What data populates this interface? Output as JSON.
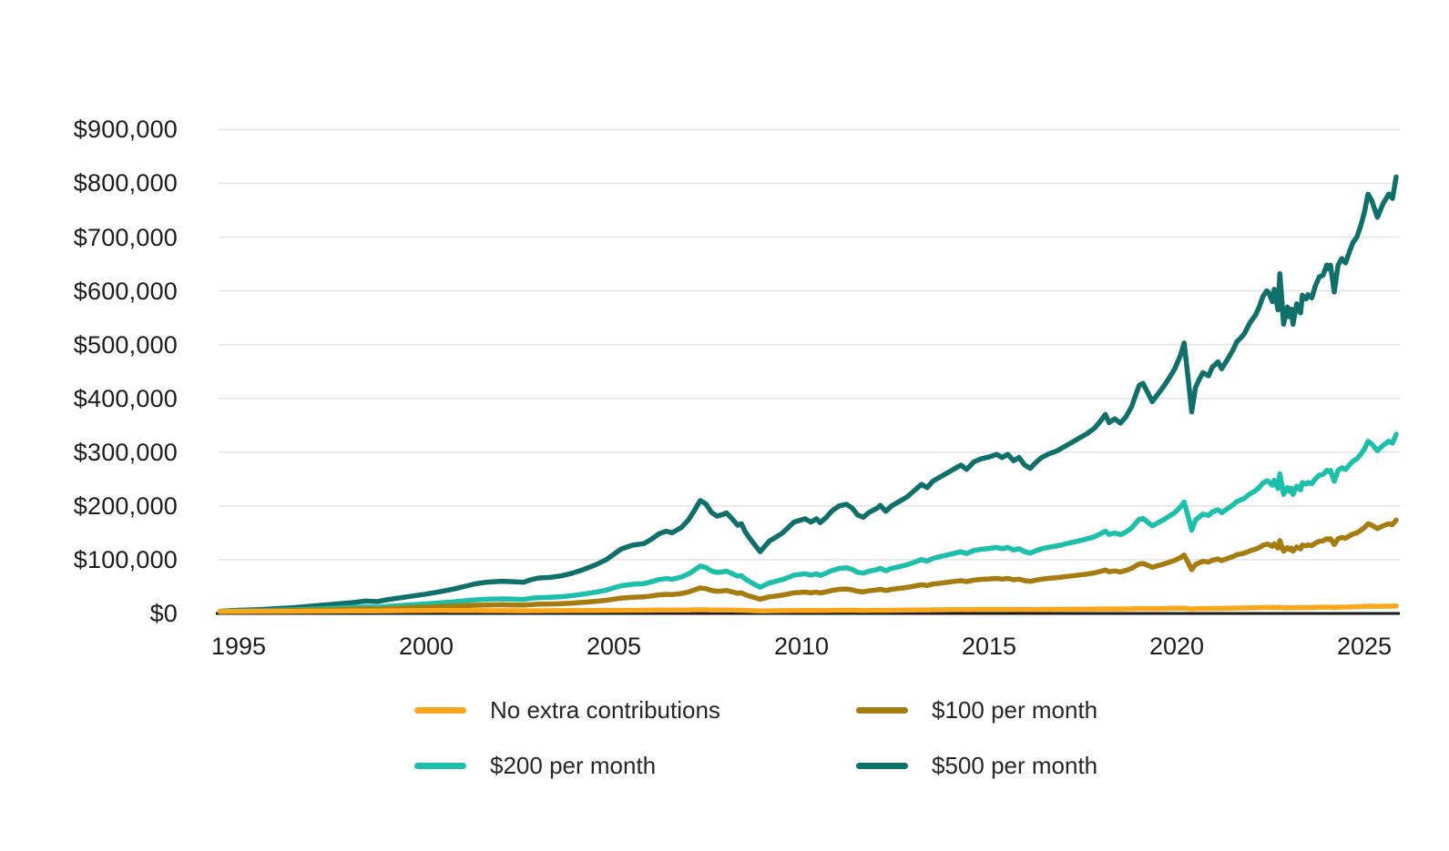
{
  "chart_data": {
    "type": "line",
    "unit_note": "values in thousands of USD read from axis gridlines",
    "grid": "horizontal",
    "legend_position": "bottom",
    "background_color": "#ffffff",
    "axis_color": "#1a1a1a",
    "grid_color": "#e5e5e5",
    "text_color": "#1c1c1c",
    "x_range": [
      1994.5,
      2026.0
    ],
    "y_range_thousands": [
      0,
      900
    ],
    "y_ticks": [
      {
        "value": 0,
        "label": "$0"
      },
      {
        "value": 100,
        "label": "$100,000"
      },
      {
        "value": 200,
        "label": "$200,000"
      },
      {
        "value": 300,
        "label": "$300,000"
      },
      {
        "value": 400,
        "label": "$400,000"
      },
      {
        "value": 500,
        "label": "$500,000"
      },
      {
        "value": 600,
        "label": "$600,000"
      },
      {
        "value": 700,
        "label": "$700,000"
      },
      {
        "value": 800,
        "label": "$800,000"
      },
      {
        "value": 900,
        "label": "$900,000"
      }
    ],
    "x_ticks": [
      {
        "year": 1995,
        "label": "1995"
      },
      {
        "year": 2000,
        "label": "2000"
      },
      {
        "year": 2005,
        "label": "2005"
      },
      {
        "year": 2010,
        "label": "2010"
      },
      {
        "year": 2015,
        "label": "2015"
      },
      {
        "year": 2020,
        "label": "2020"
      },
      {
        "year": 2025,
        "label": "2025"
      }
    ],
    "x": [
      1994.5,
      1995,
      1995.5,
      1996,
      1996.5,
      1997,
      1997.5,
      1998,
      1998.4,
      1998.7,
      1999,
      1999.5,
      2000,
      2000.4,
      2000.7,
      2001,
      2001.3,
      2001.6,
      2002,
      2002.3,
      2002.6,
      2002.8,
      2003,
      2003.3,
      2003.6,
      2003.9,
      2004.2,
      2004.5,
      2004.8,
      2005,
      2005.2,
      2005.5,
      2005.8,
      2006,
      2006.2,
      2006.4,
      2006.55,
      2006.8,
      2007,
      2007.15,
      2007.3,
      2007.45,
      2007.6,
      2007.75,
      2007.9,
      2008,
      2008.15,
      2008.3,
      2008.4,
      2008.5,
      2008.6,
      2008.75,
      2008.9,
      2009,
      2009.15,
      2009.3,
      2009.5,
      2009.65,
      2009.8,
      2009.95,
      2010.1,
      2010.25,
      2010.4,
      2010.5,
      2010.65,
      2010.8,
      2011,
      2011.2,
      2011.35,
      2011.5,
      2011.65,
      2011.8,
      2012,
      2012.1,
      2012.25,
      2012.4,
      2012.6,
      2012.8,
      2013,
      2013.2,
      2013.35,
      2013.5,
      2013.7,
      2013.9,
      2014.1,
      2014.25,
      2014.4,
      2014.6,
      2014.8,
      2015,
      2015.2,
      2015.35,
      2015.5,
      2015.65,
      2015.8,
      2015.95,
      2016.1,
      2016.25,
      2016.4,
      2016.6,
      2016.8,
      2017,
      2017.2,
      2017.4,
      2017.6,
      2017.8,
      2017.95,
      2018.1,
      2018.2,
      2018.35,
      2018.5,
      2018.65,
      2018.8,
      2018.9,
      2019,
      2019.1,
      2019.25,
      2019.35,
      2019.5,
      2019.65,
      2019.8,
      2019.95,
      2020.1,
      2020.2,
      2020.3,
      2020.4,
      2020.5,
      2020.6,
      2020.7,
      2020.85,
      2020.95,
      2021.1,
      2021.2,
      2021.35,
      2021.5,
      2021.6,
      2021.7,
      2021.8,
      2021.95,
      2022.1,
      2022.2,
      2022.3,
      2022.4,
      2022.45,
      2022.55,
      2022.6,
      2022.7,
      2022.75,
      2022.85,
      2022.95,
      2023,
      2023.05,
      2023.1,
      2023.2,
      2023.3,
      2023.35,
      2023.45,
      2023.5,
      2023.6,
      2023.7,
      2023.8,
      2023.9,
      2024,
      2024.05,
      2024.1,
      2024.2,
      2024.3,
      2024.4,
      2024.5,
      2024.6,
      2024.7,
      2024.8,
      2024.9,
      2025,
      2025.1,
      2025.2,
      2025.35,
      2025.5,
      2025.65,
      2025.75,
      2025.85
    ],
    "series": [
      {
        "name": "No extra contributions",
        "slug": "no-extra-contributions",
        "color": "#FBA71B",
        "values": [
          3.5,
          3.6,
          3.7,
          3.9,
          4,
          4.2,
          4.4,
          4.6,
          4.8,
          4.7,
          4.9,
          5.2,
          5.5,
          5.7,
          5.6,
          5.5,
          5.4,
          5.3,
          5.2,
          5,
          4.9,
          5,
          5.1,
          5.2,
          5.3,
          5.4,
          5.5,
          5.6,
          5.7,
          5.8,
          5.8,
          5.9,
          6,
          6.1,
          6.2,
          6.2,
          6.2,
          6.3,
          6.5,
          6.7,
          6.8,
          6.7,
          6.5,
          6.4,
          6.4,
          6.5,
          6.3,
          6,
          6,
          5.7,
          5.4,
          5,
          4.5,
          4.7,
          4.9,
          5,
          5.2,
          5.3,
          5.5,
          5.5,
          5.6,
          5.5,
          5.6,
          5.4,
          5.6,
          5.8,
          6,
          6.1,
          5.9,
          5.7,
          5.6,
          5.8,
          5.9,
          6,
          5.8,
          6,
          6.1,
          6.3,
          6.5,
          6.6,
          6.5,
          6.7,
          6.8,
          7,
          7.1,
          7.2,
          7,
          7.3,
          7.4,
          7.5,
          7.5,
          7.4,
          7.5,
          7.3,
          7.4,
          7.2,
          7.1,
          7.2,
          7.4,
          7.5,
          7.6,
          7.7,
          7.8,
          7.9,
          8,
          8.2,
          8.3,
          8.5,
          8.3,
          8.4,
          8.3,
          8.5,
          8.7,
          8.9,
          9.1,
          9.2,
          9,
          8.8,
          9,
          9.2,
          9.4,
          9.6,
          9.8,
          10,
          9,
          8,
          8.8,
          9,
          9.2,
          9.1,
          9.3,
          9.5,
          9.3,
          9.6,
          9.8,
          10,
          10.1,
          10.2,
          10.4,
          10.6,
          10.8,
          11,
          11.1,
          11.1,
          10.9,
          11.1,
          10.7,
          11.5,
          10.3,
          10.7,
          10.5,
          10.6,
          10.3,
          10.8,
          10.5,
          11,
          10.9,
          11,
          10.9,
          11.2,
          11.4,
          11.5,
          11.7,
          11.6,
          11.7,
          11,
          11.7,
          11.9,
          11.8,
          12,
          12.3,
          12.4,
          12.7,
          13,
          13.5,
          13.3,
          13,
          13.3,
          13.6,
          13.5,
          14
        ]
      },
      {
        "name": "$100 per month",
        "slug": "100-per-month",
        "color": "#A67C0E",
        "values": [
          3.6,
          4.1,
          4.4,
          4.9,
          5.4,
          6.2,
          6.9,
          7.7,
          8.4,
          8.2,
          9.1,
          10.4,
          11.6,
          12.8,
          13.5,
          14.4,
          15.3,
          15.8,
          16.2,
          15.8,
          15.5,
          16.6,
          17.3,
          17.6,
          18.2,
          19.3,
          20.8,
          22.5,
          24.6,
          26.6,
          28.6,
          30.1,
          30.8,
          32.5,
          34.6,
          35.6,
          35,
          37,
          40.2,
          43.8,
          47.4,
          46.2,
          42.8,
          41.3,
          41.9,
          42.6,
          40.2,
          37.6,
          38.2,
          35,
          32.7,
          29.6,
          26.6,
          28.4,
          30.9,
          32.2,
          34.2,
          36.2,
          38.4,
          39,
          39.7,
          38.4,
          39.7,
          38.1,
          40.1,
          42.6,
          44.8,
          45.5,
          43.9,
          41.2,
          40.3,
          42.2,
          43.7,
          45,
          42.6,
          44.8,
          46.5,
          48.2,
          50.8,
          53.3,
          52,
          54.6,
          56.2,
          58,
          59.7,
          61,
          59.2,
          62.2,
          63.5,
          64.2,
          65.2,
          63.9,
          65.2,
          62.6,
          63.9,
          61,
          59.7,
          62,
          63.9,
          65.4,
          66.5,
          68.2,
          69.8,
          71.5,
          73.2,
          75.4,
          77.8,
          80.8,
          77.6,
          79.1,
          77.4,
          80,
          84,
          88.1,
          92.1,
          93,
          88.8,
          85.8,
          88.8,
          91.8,
          95.1,
          98.7,
          103.8,
          108.6,
          95.2,
          81.4,
          91,
          94.2,
          97,
          95.7,
          99,
          101.2,
          98.4,
          102.1,
          105.8,
          109,
          110.5,
          112.2,
          116.3,
          119.5,
          122.6,
          126.8,
          128.9,
          128.3,
          124.7,
          129.5,
          121.6,
          135.6,
          115.8,
          122.6,
          118.8,
          121.7,
          115.8,
          123.8,
          120.2,
          127.2,
          125.7,
          127.4,
          126.1,
          131,
          134.3,
          135,
          139,
          137.5,
          139,
          128.4,
          139,
          141.5,
          139.8,
          144,
          147.8,
          149.9,
          154.2,
          159.4,
          166.8,
          164.2,
          157.8,
          163,
          166.9,
          165.2,
          173.6
        ]
      },
      {
        "name": "$200 per month",
        "slug": "200-per-month",
        "color": "#1CBFAA",
        "values": [
          3.7,
          4.6,
          5,
          5.9,
          6.8,
          8.1,
          9.4,
          10.8,
          12.1,
          11.6,
          13.3,
          15.5,
          17.7,
          19.8,
          21.4,
          23.3,
          25.2,
          26.4,
          27.1,
          26.6,
          26.1,
          28.2,
          29.5,
          29.9,
          31.2,
          33.2,
          36.1,
          39.4,
          43.4,
          47.5,
          51.5,
          54.3,
          55.6,
          58.9,
          62.9,
          64.9,
          63.7,
          67.8,
          73.9,
          80.8,
          88.1,
          85.6,
          79.1,
          76.2,
          77.4,
          78.7,
          74.2,
          69.2,
          70.4,
          64.2,
          60,
          54.2,
          48.7,
          52,
          56.9,
          59.4,
          63.1,
          67.2,
          71.3,
          72.5,
          73.8,
          71.3,
          73.8,
          70.8,
          74.6,
          79.5,
          83.6,
          84.9,
          81.9,
          76.6,
          75,
          78.7,
          81.5,
          84,
          79.5,
          83.6,
          86.9,
          90.2,
          95.1,
          100,
          97.5,
          102.4,
          105.7,
          109,
          112.3,
          114.7,
          111.4,
          117.2,
          119.6,
          120.9,
          122.9,
          120.4,
          122.9,
          118,
          120.4,
          114.7,
          112.3,
          116.7,
          120.4,
          123.3,
          125.4,
          128.6,
          131.9,
          135.1,
          138.4,
          142.5,
          147.4,
          153.1,
          147,
          149.8,
          146.6,
          151.5,
          159.2,
          167.3,
          175.1,
          176.7,
          168.6,
          162.9,
          168.6,
          174.3,
          180.8,
          187.8,
          197.9,
          207.2,
          181.4,
          154.8,
          173.3,
          179.4,
          184.7,
          182.3,
          188.8,
          192.9,
          187.6,
          194.6,
          201.9,
          208,
          210.9,
          214.1,
          222.2,
          228.4,
          234.5,
          242.6,
          246.7,
          245.5,
          238.5,
          247.9,
          232.4,
          259.7,
          221.4,
          234.4,
          227.1,
          232.8,
          221.4,
          236.9,
          229.9,
          243.4,
          240.5,
          243.8,
          241.3,
          250.7,
          257.2,
          258.5,
          266.2,
          263.4,
          266.2,
          245.8,
          266.2,
          271.1,
          267.9,
          276,
          283.4,
          287.4,
          295.6,
          305.8,
          320.1,
          315.2,
          302.6,
          312.8,
          320.2,
          316.9,
          333.2
        ]
      },
      {
        "name": "$500 per month",
        "slug": "500-per-month",
        "color": "#0E6F6B",
        "values": [
          4,
          6,
          7,
          9,
          11,
          14,
          17,
          20,
          23,
          22,
          26,
          31,
          36,
          41,
          45,
          50,
          55,
          58,
          60,
          59,
          58,
          63,
          66,
          67,
          70,
          75,
          82,
          90,
          100,
          110,
          120,
          127,
          130,
          138,
          148,
          153,
          150,
          160,
          175,
          192,
          210,
          204,
          188,
          181,
          184,
          187,
          176,
          164,
          167,
          152,
          142,
          128,
          115,
          123,
          135,
          141,
          150,
          160,
          170,
          173,
          176,
          170,
          176,
          169,
          178,
          190,
          200,
          203,
          196,
          183,
          179,
          188,
          195,
          201,
          190,
          200,
          208,
          216,
          228,
          240,
          234,
          246,
          254,
          262,
          270,
          276,
          268,
          282,
          288,
          291,
          296,
          290,
          296,
          284,
          290,
          276,
          270,
          281,
          290,
          297,
          302,
          310,
          318,
          326,
          334,
          344,
          356,
          370,
          355,
          362,
          354,
          366,
          385,
          405,
          424,
          428,
          408,
          394,
          408,
          422,
          438,
          455,
          480,
          503,
          440,
          375,
          420,
          435,
          448,
          442,
          458,
          468,
          455,
          472,
          490,
          505,
          512,
          520,
          540,
          555,
          570,
          590,
          600,
          597,
          580,
          603,
          565,
          632,
          538,
          570,
          552,
          566,
          538,
          576,
          559,
          592,
          585,
          593,
          587,
          610,
          626,
          629,
          648,
          641,
          648,
          598,
          648,
          660,
          652,
          672,
          690,
          700,
          720,
          745,
          780,
          768,
          737,
          762,
          780,
          772,
          812
        ]
      }
    ]
  },
  "legend": {
    "items": [
      {
        "label": "No extra contributions",
        "series_index": 0
      },
      {
        "label": "$100 per month",
        "series_index": 1
      },
      {
        "label": "$200 per month",
        "series_index": 2
      },
      {
        "label": "$500 per month",
        "series_index": 3
      }
    ]
  }
}
